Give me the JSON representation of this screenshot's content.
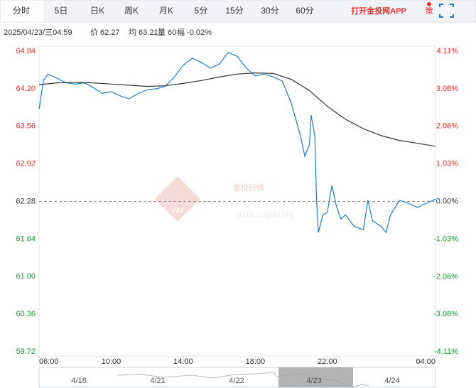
{
  "ui": {
    "tabs": [
      "分时",
      "5日",
      "日K",
      "周K",
      "月K",
      "5分",
      "15分",
      "30分",
      "60分"
    ],
    "app_link": "打开金投网APP",
    "strategy": "策",
    "info": [
      "2025/04/23/三04:59",
      "价 62.27",
      "均 63.21",
      "量 60",
      "幅 -0.02%"
    ],
    "watermark": "金投行情",
    "watermark_logo": "AU",
    "watermark_url": "quote.cngold.org",
    "navigator_dates": [
      "4/18",
      "4/21",
      "4/22",
      "4/23",
      "4/24"
    ]
  },
  "chart_data": {
    "type": "line",
    "reference": 62.28,
    "up_color": "#e8312f",
    "down_color": "#1a9a3a",
    "flat_color": "#333333",
    "xlim": [
      0,
      22
    ],
    "xticks": [
      {
        "value": 0,
        "label": "06:00"
      },
      {
        "value": 4,
        "label": "10:00"
      },
      {
        "value": 8,
        "label": "14:00"
      },
      {
        "value": 12,
        "label": "18:00"
      },
      {
        "value": 16,
        "label": "22:00"
      },
      {
        "value": 22,
        "label": "04:00"
      }
    ],
    "ylim": [
      59.72,
      64.84
    ],
    "yticks": [
      64.84,
      {
        "value": 64.2,
        "label": "64.20"
      },
      63.56,
      62.92,
      62.28,
      61.64,
      {
        "value": 61,
        "label": "61.00"
      },
      60.36,
      59.72
    ],
    "y2lim": [
      -4.11,
      4.11
    ],
    "y2ticks": [
      {
        "value": 4.11,
        "label": "4.11%"
      },
      {
        "value": 3.08,
        "label": "3.08%"
      },
      {
        "value": 2.06,
        "label": "2.06%"
      },
      {
        "value": 1.03,
        "label": "1.03%"
      },
      {
        "value": 0,
        "label": "0.00%"
      },
      {
        "value": -1.03,
        "label": "-1.03%"
      },
      {
        "value": -2.06,
        "label": "-2.06%"
      },
      {
        "value": -3.08,
        "label": "-3.08%"
      },
      {
        "value": -4.11,
        "label": "-4.11%"
      }
    ],
    "series": [
      {
        "color": "#1a7fc9",
        "x": [
          0,
          0.25,
          0.5,
          1,
          1.5,
          2,
          2.5,
          3,
          3.5,
          4,
          4.5,
          5,
          5.5,
          6,
          6.5,
          7,
          7.5,
          8,
          8.5,
          9,
          9.5,
          10,
          10.5,
          11,
          11.5,
          12,
          12.5,
          13,
          13.5,
          14,
          14.5,
          14.75,
          15,
          15.1,
          15.3,
          15.4,
          15.5,
          15.75,
          16,
          16.25,
          16.5,
          16.75,
          17,
          17.5,
          18,
          18.25,
          18.5,
          19,
          19.25,
          19.5,
          20,
          20.5,
          21,
          21.5,
          22
        ],
        "values": [
          63.85,
          64.35,
          64.45,
          64.38,
          64.3,
          64.28,
          64.3,
          64.22,
          64.12,
          64.15,
          64.08,
          64.03,
          64.12,
          64.18,
          64.2,
          64.24,
          64.4,
          64.6,
          64.72,
          64.65,
          64.55,
          64.62,
          64.82,
          64.75,
          64.55,
          64.42,
          64.45,
          64.4,
          64.33,
          63.95,
          63.4,
          63.05,
          63.25,
          63.75,
          63.4,
          62.3,
          61.75,
          62.05,
          62.1,
          62.55,
          62.2,
          61.98,
          62.05,
          61.85,
          61.8,
          62.3,
          61.95,
          61.85,
          61.75,
          62.05,
          62.3,
          62.25,
          62.18,
          62.25,
          62.32
        ]
      },
      {
        "color": "#333333",
        "x": [
          0,
          1,
          2,
          3,
          4,
          5,
          6,
          7,
          8,
          9,
          10,
          11,
          12,
          13,
          14,
          15,
          16,
          17,
          18,
          19,
          20,
          21,
          22
        ],
        "values": [
          64.27,
          64.3,
          64.31,
          64.3,
          64.28,
          64.26,
          64.24,
          64.25,
          64.29,
          64.34,
          64.4,
          64.45,
          64.47,
          64.46,
          64.36,
          64.17,
          63.9,
          63.68,
          63.52,
          63.4,
          63.32,
          63.27,
          63.22
        ]
      }
    ]
  }
}
